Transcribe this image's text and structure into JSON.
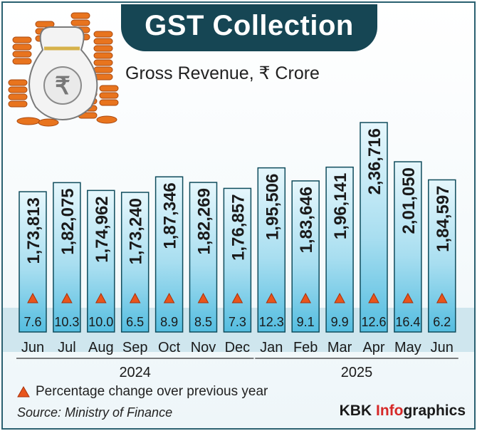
{
  "title": "GST Collection",
  "subtitle": "Gross Revenue, ₹ Crore",
  "legend_text": "Percentage change over previous year",
  "source": "Source: Ministry of Finance",
  "brand": {
    "part1": "KBK ",
    "part2": "Info",
    "part3": "graphics"
  },
  "colors": {
    "banner": "#164654",
    "bar_fill_top": "#dff4fb",
    "bar_fill_bottom": "#5ec3e3",
    "bar_stroke": "#0f4c5c",
    "band": "#cfe6ee",
    "triangle": "#e8551c",
    "text": "#1a1a1a"
  },
  "icon": "money-bag-with-coin-stacks-icon",
  "chart_data": {
    "type": "bar",
    "categories": [
      "Jun",
      "Jul",
      "Aug",
      "Sep",
      "Oct",
      "Nov",
      "Dec",
      "Jan",
      "Feb",
      "Mar",
      "Apr",
      "May",
      "Jun"
    ],
    "values": [
      173813,
      182075,
      174962,
      173240,
      187346,
      182269,
      176857,
      195506,
      183646,
      196141,
      236716,
      201050,
      184597
    ],
    "value_labels": [
      "1,73,813",
      "1,82,075",
      "1,74,962",
      "1,73,240",
      "1,87,346",
      "1,82,269",
      "1,76,857",
      "1,95,506",
      "1,83,646",
      "1,96,141",
      "2,36,716",
      "2,01,050",
      "1,84,597"
    ],
    "pct_change": [
      7.6,
      10.3,
      10.0,
      6.5,
      8.9,
      8.5,
      7.3,
      12.3,
      9.1,
      9.9,
      12.6,
      16.4,
      6.2
    ],
    "pct_labels": [
      "7.6",
      "10.3",
      "10.0",
      "6.5",
      "8.9",
      "8.5",
      "7.3",
      "12.3",
      "9.1",
      "9.9",
      "12.6",
      "16.4",
      "6.2"
    ],
    "year_groups": [
      {
        "label": "2024",
        "from": 0,
        "to": 6
      },
      {
        "label": "2025",
        "from": 7,
        "to": 12
      }
    ],
    "title": "GST Collection",
    "ylabel": "Gross Revenue, ₹ Crore"
  }
}
